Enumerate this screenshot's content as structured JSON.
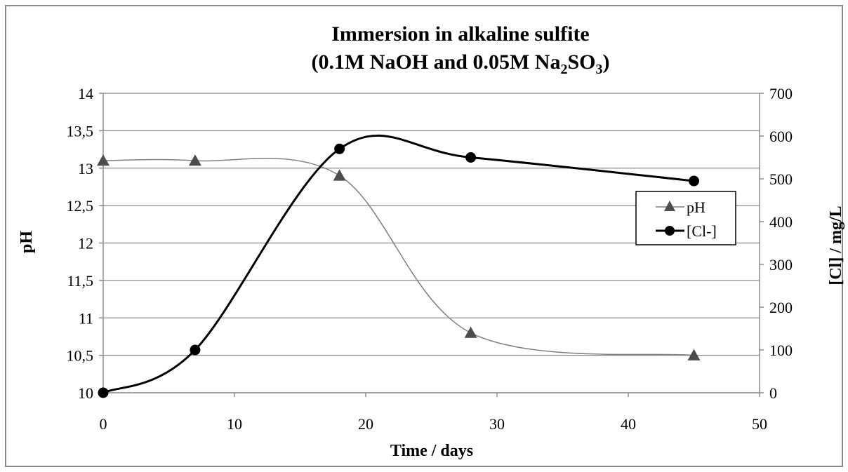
{
  "chart_data": {
    "type": "line",
    "title_line1": "Immersion in alkaline sulfite",
    "title_line2_a": "(0.1M NaOH  and 0.05M Na",
    "title_sub_1": "2",
    "title_line2_b": "SO",
    "title_sub_2": "3",
    "title_line2_c": ")",
    "xlabel": "Time / days",
    "ylabel_left": "pH",
    "ylabel_right": "[Cl] / mg/L",
    "xlim": [
      0,
      50
    ],
    "ylim_left": [
      10,
      14
    ],
    "ylim_right": [
      0,
      700
    ],
    "x_ticks": [
      "0",
      "10",
      "20",
      "30",
      "40",
      "50"
    ],
    "y_left_ticks": [
      "10",
      "10,5",
      "11",
      "11,5",
      "12",
      "12,5",
      "13",
      "13,5",
      "14"
    ],
    "y_right_ticks": [
      "0",
      "100",
      "200",
      "300",
      "400",
      "500",
      "600",
      "700"
    ],
    "grid": true,
    "legend_position": "right",
    "series": [
      {
        "name": "pH",
        "axis": "left",
        "marker": "triangle",
        "color": "#7f7f7f",
        "x": [
          0,
          7,
          18,
          28,
          45
        ],
        "y": [
          13.1,
          13.1,
          12.9,
          10.8,
          10.5
        ]
      },
      {
        "name": "[Cl-]",
        "axis": "right",
        "marker": "circle",
        "color": "#000000",
        "x": [
          0,
          7,
          18,
          28,
          45
        ],
        "y": [
          0,
          100,
          570,
          550,
          495
        ]
      }
    ]
  }
}
